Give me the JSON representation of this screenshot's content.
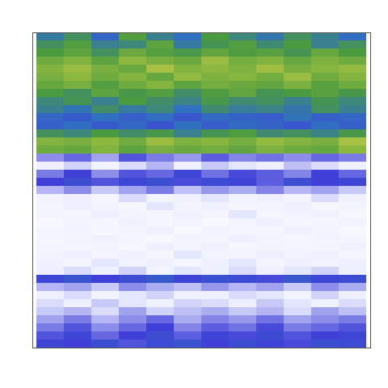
{
  "chart_data": {
    "type": "heatmap",
    "tick_labels": false,
    "grid": false,
    "zlim": [
      0,
      100
    ],
    "cells": [
      [
        48,
        55,
        42,
        60,
        50,
        45,
        58,
        52,
        47,
        55,
        50,
        44
      ],
      [
        55,
        60,
        50,
        52,
        62,
        48,
        56,
        60,
        53,
        58,
        50,
        55
      ],
      [
        58,
        62,
        55,
        65,
        60,
        57,
        63,
        59,
        61,
        56,
        64,
        58
      ],
      [
        66,
        70,
        62,
        72,
        68,
        65,
        74,
        67,
        70,
        64,
        69,
        66
      ],
      [
        70,
        74,
        68,
        65,
        76,
        70,
        72,
        69,
        75,
        68,
        71,
        73
      ],
      [
        68,
        72,
        66,
        70,
        64,
        73,
        69,
        71,
        67,
        74,
        66,
        70
      ],
      [
        64,
        68,
        60,
        66,
        70,
        62,
        67,
        65,
        63,
        69,
        61,
        66
      ],
      [
        58,
        55,
        62,
        57,
        60,
        54,
        59,
        63,
        56,
        58,
        61,
        57
      ],
      [
        52,
        56,
        50,
        58,
        54,
        51,
        57,
        53,
        55,
        50,
        56,
        52
      ],
      [
        50,
        46,
        54,
        48,
        52,
        45,
        53,
        49,
        51,
        47,
        55,
        50
      ],
      [
        42,
        38,
        45,
        40,
        44,
        37,
        43,
        41,
        39,
        46,
        40,
        42
      ],
      [
        40,
        44,
        38,
        42,
        36,
        45,
        39,
        43,
        41,
        37,
        44,
        40
      ],
      [
        55,
        52,
        58,
        54,
        57,
        50,
        56,
        59,
        53,
        55,
        51,
        57
      ],
      [
        70,
        68,
        72,
        66,
        74,
        69,
        71,
        67,
        73,
        70,
        68,
        76
      ],
      [
        66,
        64,
        70,
        62,
        68,
        65,
        67,
        63,
        69,
        66,
        64,
        72
      ],
      [
        22,
        26,
        20,
        28,
        24,
        21,
        27,
        23,
        25,
        22,
        26,
        24
      ],
      [
        12,
        15,
        10,
        14,
        18,
        11,
        16,
        13,
        12,
        17,
        14,
        11
      ],
      [
        24,
        30,
        22,
        28,
        26,
        32,
        25,
        29,
        27,
        23,
        30,
        26
      ],
      [
        30,
        34,
        28,
        32,
        35,
        29,
        33,
        31,
        27,
        34,
        30,
        32
      ],
      [
        18,
        22,
        16,
        20,
        24,
        17,
        21,
        19,
        23,
        18,
        20,
        16
      ],
      [
        10,
        12,
        8,
        14,
        9,
        11,
        13,
        10,
        12,
        9,
        14,
        11
      ],
      [
        8,
        12,
        10,
        7,
        13,
        9,
        11,
        8,
        10,
        12,
        7,
        9
      ],
      [
        9,
        7,
        12,
        10,
        8,
        11,
        9,
        13,
        8,
        10,
        11,
        7
      ],
      [
        6,
        9,
        8,
        11,
        7,
        10,
        6,
        9,
        12,
        8,
        7,
        10
      ],
      [
        8,
        10,
        7,
        9,
        11,
        6,
        10,
        8,
        7,
        11,
        9,
        6
      ],
      [
        7,
        9,
        11,
        8,
        6,
        10,
        8,
        12,
        9,
        7,
        10,
        8
      ],
      [
        9,
        8,
        10,
        7,
        12,
        9,
        11,
        7,
        10,
        8,
        9,
        11
      ],
      [
        10,
        12,
        9,
        11,
        8,
        13,
        10,
        9,
        12,
        10,
        11,
        8
      ],
      [
        11,
        9,
        13,
        10,
        12,
        8,
        11,
        13,
        9,
        12,
        10,
        12
      ],
      [
        12,
        14,
        11,
        15,
        10,
        13,
        12,
        14,
        11,
        13,
        15,
        12
      ],
      [
        32,
        36,
        30,
        34,
        38,
        31,
        35,
        33,
        29,
        37,
        32,
        34
      ],
      [
        18,
        20,
        16,
        22,
        19,
        17,
        21,
        18,
        20,
        16,
        22,
        19
      ],
      [
        12,
        14,
        10,
        13,
        15,
        11,
        12,
        14,
        13,
        10,
        15,
        12
      ],
      [
        14,
        12,
        16,
        13,
        11,
        15,
        14,
        12,
        16,
        13,
        11,
        14
      ],
      [
        16,
        18,
        14,
        20,
        15,
        17,
        19,
        16,
        18,
        14,
        20,
        17
      ],
      [
        20,
        24,
        18,
        22,
        26,
        19,
        23,
        21,
        25,
        20,
        22,
        24
      ],
      [
        24,
        28,
        22,
        26,
        30,
        23,
        27,
        25,
        29,
        24,
        26,
        28
      ],
      [
        28,
        32,
        26,
        30,
        34,
        27,
        31,
        29,
        33,
        28,
        30,
        32
      ],
      [
        32,
        30,
        35,
        28,
        33,
        36,
        30,
        34,
        31,
        29,
        35,
        33
      ]
    ]
  }
}
